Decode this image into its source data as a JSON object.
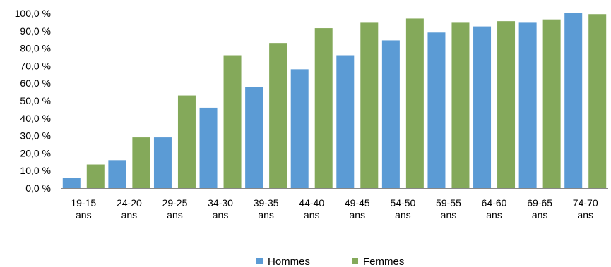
{
  "chart_data": {
    "type": "bar",
    "categories": [
      [
        "19-15",
        "ans"
      ],
      [
        "24-20",
        "ans"
      ],
      [
        "29-25",
        "ans"
      ],
      [
        "34-30",
        "ans"
      ],
      [
        "39-35",
        "ans"
      ],
      [
        "44-40",
        "ans"
      ],
      [
        "49-45",
        "ans"
      ],
      [
        "54-50",
        "ans"
      ],
      [
        "59-55",
        "ans"
      ],
      [
        "64-60",
        "ans"
      ],
      [
        "69-65",
        "ans"
      ],
      [
        "74-70",
        "ans"
      ]
    ],
    "series": [
      {
        "name": "Hommes",
        "color": "#5b9bd5",
        "values": [
          6.0,
          16.0,
          29.0,
          46.0,
          58.0,
          68.0,
          76.0,
          84.5,
          89.0,
          92.5,
          95.0,
          100.0
        ]
      },
      {
        "name": "Femmes",
        "color": "#84a95a",
        "values": [
          13.5,
          29.0,
          53.0,
          76.0,
          83.0,
          91.5,
          95.0,
          97.0,
          95.0,
          95.5,
          96.5,
          99.5
        ]
      }
    ],
    "y_ticks": [
      "0,0 %",
      "10,0 %",
      "20,0 %",
      "30,0 %",
      "40,0 %",
      "50,0 %",
      "60,0 %",
      "70,0 %",
      "80,0 %",
      "90,0 %",
      "100,0 %"
    ],
    "ylim": [
      0,
      100
    ],
    "grid": false,
    "legend_position": "bottom"
  }
}
